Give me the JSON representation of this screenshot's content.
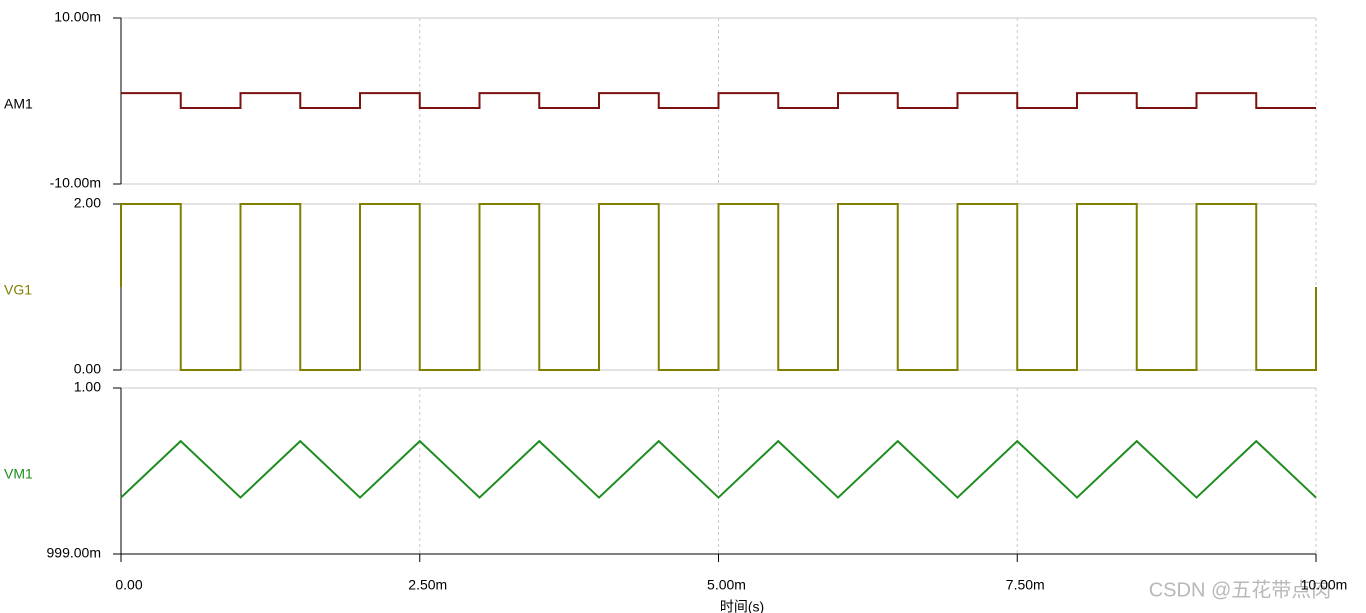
{
  "chart_data": [
    {
      "type": "line",
      "y_label": "AM1",
      "label_color": "#000000",
      "ylim": [
        {
          "value": -0.01,
          "label": "-10.00m"
        },
        {
          "value": 0.01,
          "label": "10.00m"
        }
      ],
      "yticks": [
        {
          "value": -0.01,
          "label": "-10.00m"
        },
        {
          "value": 0.01,
          "label": "10.00m"
        }
      ],
      "xlim": [
        0,
        0.01
      ],
      "xticks": [
        0,
        0.0025,
        0.005,
        0.0075,
        0.01
      ],
      "grid": true,
      "series": [
        {
          "name": "AM1",
          "color": "#7b1111",
          "x": [
            0,
            0.0005,
            0.0005,
            0.001,
            0.001,
            0.0015,
            0.0015,
            0.002,
            0.002,
            0.0025,
            0.0025,
            0.003,
            0.003,
            0.0035,
            0.0035,
            0.004,
            0.004,
            0.0045,
            0.0045,
            0.005,
            0.005,
            0.0055,
            0.0055,
            0.006,
            0.006,
            0.0065,
            0.0065,
            0.007,
            0.007,
            0.0075,
            0.0075,
            0.008,
            0.008,
            0.0085,
            0.0085,
            0.009,
            0.009,
            0.0095,
            0.0095,
            0.01
          ],
          "values": [
            0.00095,
            0.00095,
            -0.00085,
            -0.00085,
            0.00095,
            0.00095,
            -0.00085,
            -0.00085,
            0.00095,
            0.00095,
            -0.00085,
            -0.00085,
            0.00095,
            0.00095,
            -0.00085,
            -0.00085,
            0.00095,
            0.00095,
            -0.00085,
            -0.00085,
            0.00095,
            0.00095,
            -0.00085,
            -0.00085,
            0.00095,
            0.00095,
            -0.00085,
            -0.00085,
            0.00095,
            0.00095,
            -0.00085,
            -0.00085,
            0.00095,
            0.00095,
            -0.00085,
            -0.00085,
            0.00095,
            0.00095,
            -0.00085,
            -0.00085
          ]
        }
      ]
    },
    {
      "type": "line",
      "y_label": "VG1",
      "label_color": "#808000",
      "ylim": [
        0,
        2
      ],
      "yticks": [
        {
          "value": 0,
          "label": "0.00"
        },
        {
          "value": 2,
          "label": "2.00"
        }
      ],
      "xlim": [
        0,
        0.01
      ],
      "xticks": [
        0,
        0.0025,
        0.005,
        0.0075,
        0.01
      ],
      "grid": true,
      "series": [
        {
          "name": "VG1",
          "color": "#808000",
          "x": [
            0,
            0,
            0.0005,
            0.0005,
            0.001,
            0.001,
            0.0015,
            0.0015,
            0.002,
            0.002,
            0.0025,
            0.0025,
            0.003,
            0.003,
            0.0035,
            0.0035,
            0.004,
            0.004,
            0.0045,
            0.0045,
            0.005,
            0.005,
            0.0055,
            0.0055,
            0.006,
            0.006,
            0.0065,
            0.0065,
            0.007,
            0.007,
            0.0075,
            0.0075,
            0.008,
            0.008,
            0.0085,
            0.0085,
            0.009,
            0.009,
            0.0095,
            0.0095,
            0.01,
            0.01
          ],
          "values": [
            1,
            2,
            2,
            0,
            0,
            2,
            2,
            0,
            0,
            2,
            2,
            0,
            0,
            2,
            2,
            0,
            0,
            2,
            2,
            0,
            0,
            2,
            2,
            0,
            0,
            2,
            2,
            0,
            0,
            2,
            2,
            0,
            0,
            2,
            2,
            0,
            0,
            2,
            2,
            0,
            0,
            1
          ]
        }
      ]
    },
    {
      "type": "line",
      "y_label": "VM1",
      "label_color": "#1e8c1e",
      "x_label": "时间(s)",
      "ylim": [
        0.999,
        1
      ],
      "yticks": [
        {
          "value": 0.999,
          "label": "999.00m"
        },
        {
          "value": 1,
          "label": "1.00"
        }
      ],
      "xlim": [
        0,
        0.01
      ],
      "xticks": [
        {
          "value": 0,
          "label": "0.00"
        },
        {
          "value": 0.0025,
          "label": "2.50m"
        },
        {
          "value": 0.005,
          "label": "5.00m"
        },
        {
          "value": 0.0075,
          "label": "7.50m"
        },
        {
          "value": 0.01,
          "label": "10.00m"
        }
      ],
      "grid": true,
      "series": [
        {
          "name": "VM1",
          "color": "#1e8c1e",
          "x": [
            0,
            0.0005,
            0.001,
            0.0015,
            0.002,
            0.0025,
            0.003,
            0.0035,
            0.004,
            0.0045,
            0.005,
            0.0055,
            0.006,
            0.0065,
            0.007,
            0.0075,
            0.008,
            0.0085,
            0.009,
            0.0095,
            0.01
          ],
          "values": [
            0.99934,
            0.99968,
            0.99934,
            0.99968,
            0.99934,
            0.99968,
            0.99934,
            0.99968,
            0.99934,
            0.99968,
            0.99934,
            0.99968,
            0.99934,
            0.99968,
            0.99934,
            0.99968,
            0.99934,
            0.99968,
            0.99934,
            0.99968,
            0.99934
          ]
        }
      ]
    }
  ],
  "watermark": "CSDN @五花带点肉"
}
